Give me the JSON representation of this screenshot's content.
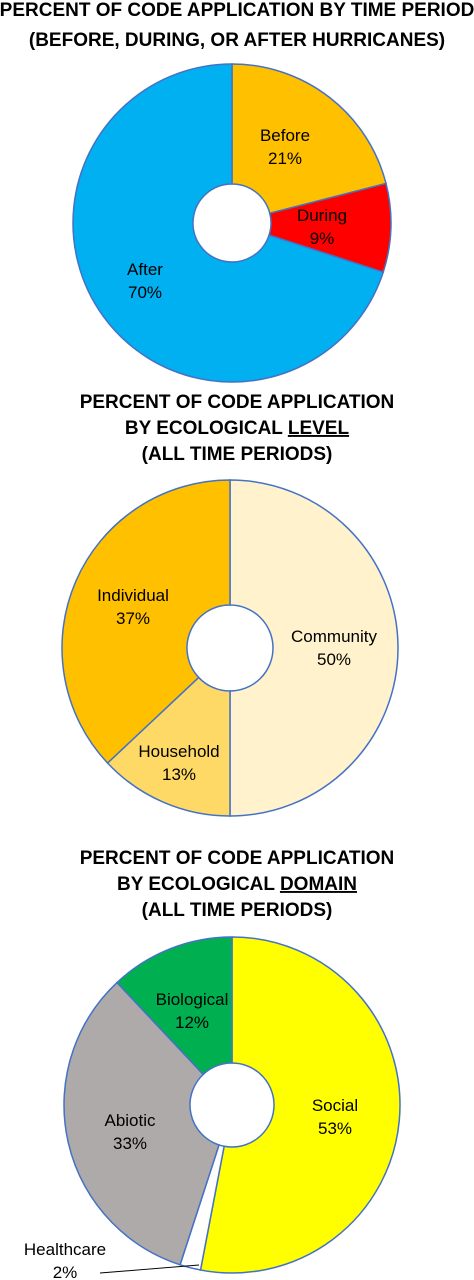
{
  "chart_data": [
    {
      "type": "pie",
      "donut": true,
      "title_lines": [
        "PERCENT OF CODE APPLICATION BY TIME PERIOD",
        "(BEFORE, DURING, OR AFTER HURRICANES)"
      ],
      "slices": [
        {
          "name": "Before",
          "value": 21,
          "value_label": "21%",
          "color": "#FFC000"
        },
        {
          "name": "During",
          "value": 9,
          "value_label": "9%",
          "color": "#FF0000"
        },
        {
          "name": "After",
          "value": 70,
          "value_label": "70%",
          "color": "#00B0F0"
        }
      ]
    },
    {
      "type": "pie",
      "donut": true,
      "title_lines": [
        "PERCENT OF CODE APPLICATION",
        "BY ECOLOGICAL LEVEL",
        "(ALL TIME PERIODS)"
      ],
      "title_underline_word": "LEVEL",
      "slices": [
        {
          "name": "Community",
          "value": 50,
          "value_label": "50%",
          "color": "#FFF2CC"
        },
        {
          "name": "Household",
          "value": 13,
          "value_label": "13%",
          "color": "#FFD966"
        },
        {
          "name": "Individual",
          "value": 37,
          "value_label": "37%",
          "color": "#FFC000"
        }
      ]
    },
    {
      "type": "pie",
      "donut": true,
      "title_lines": [
        "PERCENT OF CODE APPLICATION",
        "BY ECOLOGICAL DOMAIN",
        "(ALL TIME PERIODS)"
      ],
      "title_underline_word": "DOMAIN",
      "slices": [
        {
          "name": "Social",
          "value": 53,
          "value_label": "53%",
          "color": "#FFFF00"
        },
        {
          "name": "Healthcare",
          "value": 2,
          "value_label": "2%",
          "color": "#FFFFFF"
        },
        {
          "name": "Abiotic",
          "value": 33,
          "value_label": "33%",
          "color": "#AEAAAA"
        },
        {
          "name": "Biological",
          "value": 12,
          "value_label": "12%",
          "color": "#00B050"
        }
      ]
    }
  ],
  "colors": {
    "outline": "#4472C4"
  }
}
